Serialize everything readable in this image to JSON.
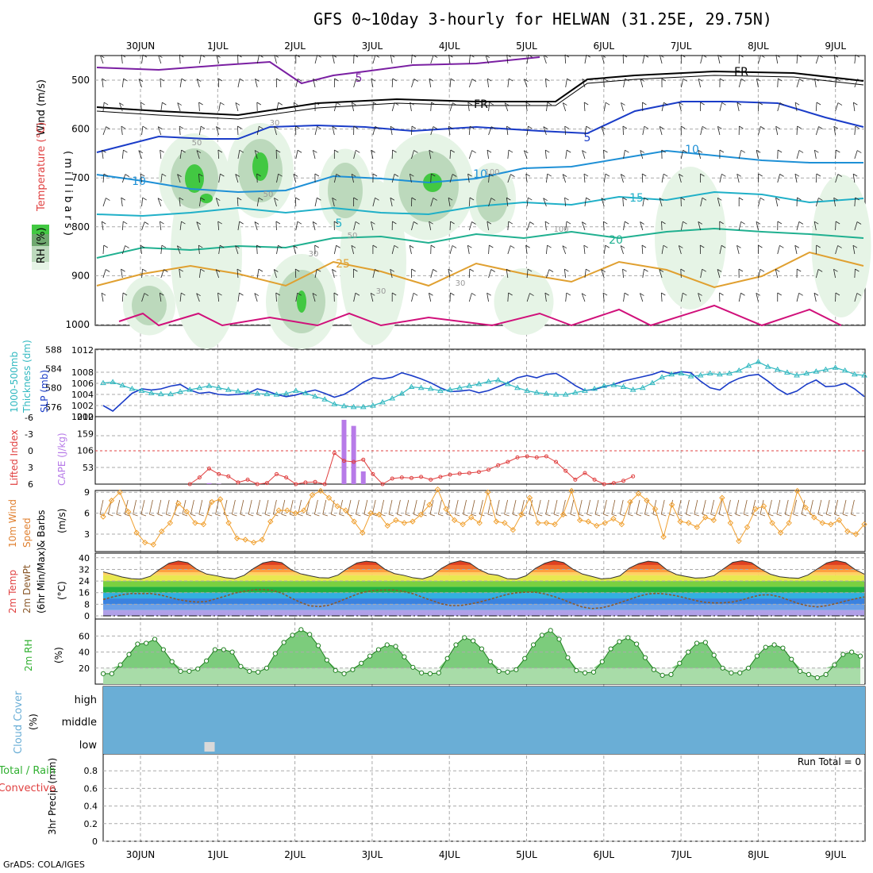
{
  "title": "GFS 0~10day 3-hourly for HELWAN (31.25E, 29.75N)",
  "credit": "GrADS: COLA/IGES",
  "colors": {
    "grid": "#aaaaaa",
    "rh_light": "#e6f4e6",
    "rh_mid": "#bcd9bc",
    "rh_dark": "#6fa86f",
    "rh_bright": "#42c842",
    "slp": "#1a3cc8",
    "thickness": "#30b8c0",
    "cape": "#b77be8",
    "lifted": "#e04040",
    "wind10": "#f0a030",
    "barb": "#8b5a2b",
    "temp_line": "#8b5a2b",
    "rh2m": "#30b030",
    "cloud": "#6aaed6",
    "cloud_low": "#d9d9d9"
  },
  "time_axis": {
    "labels": [
      "30JUN",
      "1JUL",
      "2JUL",
      "3JUL",
      "4JUL",
      "5JUL",
      "6JUL",
      "7JUL",
      "8JUL",
      "9JUL"
    ]
  },
  "panels": {
    "upper_air": {
      "ylabels": [
        "Wind (m/s)",
        "Temperature (°C)",
        "RH (%)",
        "( m i l l i b a r s )"
      ],
      "ticks": [
        "500",
        "600",
        "700",
        "800",
        "900",
        "1000"
      ],
      "contour_labels": [
        "5",
        "5",
        "10",
        "10",
        "10",
        "5",
        "15",
        "20",
        "25",
        "FR",
        "FR",
        "30",
        "30",
        "30",
        "50",
        "50",
        "50",
        "30",
        "100",
        "100"
      ]
    },
    "thickness_slp": {
      "ylabel_left": "1000-500mb",
      "ylabel_left2": "Thickness (dm)",
      "ylabel_right": "SLP (mb)",
      "ticks_left": [
        "588",
        "584",
        "580",
        "576"
      ],
      "ticks_right": [
        "1012",
        "1008",
        "1006",
        "1004",
        "1002",
        "1000"
      ]
    },
    "cape": {
      "ylabel_left": "Lifted Index",
      "ylabel_right": "CAPE (J/kg)",
      "ticks_left": [
        "-6",
        "-3",
        "0",
        "3",
        "6"
      ],
      "ticks_right": [
        "212",
        "159",
        "106",
        "53"
      ]
    },
    "wind10m": {
      "ylabels": [
        "10m Wind",
        "Speed",
        "& Barbs"
      ],
      "unit": "(m/s)",
      "ticks": [
        "9",
        "6",
        "3"
      ]
    },
    "temp2m": {
      "ylabels": [
        "2m Temp",
        "2m DewPt",
        "(6hr Min/Max)"
      ],
      "unit": "(°C)",
      "ticks": [
        "40",
        "32",
        "24",
        "16",
        "8",
        "0"
      ]
    },
    "rh2m": {
      "ylabel": "2m RH",
      "unit": "(%)",
      "ticks": [
        "60",
        "40",
        "20"
      ]
    },
    "cloud": {
      "ylabel": "Cloud Cover",
      "unit": "(%)",
      "levels": [
        "high",
        "middle",
        "low"
      ]
    },
    "precip": {
      "ylabel": "3hr Precip (mm)",
      "legend_total": "Total / Rain",
      "legend_conv": "Convective",
      "run_total": "Run Total = 0",
      "ticks": [
        "0.8",
        "0.6",
        "0.4",
        "0.2",
        "0"
      ]
    }
  },
  "chart_data": [
    {
      "type": "line",
      "title": "1000-500mb Thickness (dm) / SLP (mb)",
      "x": "3-hourly steps from 30JUN 00Z (0..79)",
      "series": [
        {
          "name": "SLP (mb)",
          "axis": "right",
          "ylim": [
            1000,
            1012
          ],
          "values": [
            1002.0,
            1001.0,
            1002.6,
            1004.2,
            1005.0,
            1004.8,
            1005.0,
            1005.5,
            1005.8,
            1004.8,
            1004.2,
            1004.4,
            1004.0,
            1003.9,
            1004.0,
            1004.2,
            1005.0,
            1004.6,
            1004.0,
            1003.6,
            1003.9,
            1004.4,
            1004.8,
            1004.2,
            1003.5,
            1004.0,
            1005.0,
            1006.2,
            1007.0,
            1006.8,
            1007.1,
            1007.9,
            1007.4,
            1006.8,
            1006.1,
            1005.2,
            1004.5,
            1004.6,
            1004.8,
            1004.3,
            1004.7,
            1005.4,
            1006.1,
            1007.0,
            1007.4,
            1007.0,
            1007.6,
            1007.8,
            1006.8,
            1005.6,
            1004.7,
            1004.9,
            1005.4,
            1005.8,
            1006.4,
            1006.8,
            1007.2,
            1007.6,
            1008.2,
            1007.7,
            1008.1,
            1007.9,
            1006.4,
            1005.2,
            1004.8,
            1006.1,
            1006.9,
            1007.4,
            1007.6,
            1006.4,
            1005.0,
            1004.0,
            1004.6,
            1005.8,
            1006.6,
            1005.4,
            1005.5,
            1006.0,
            1005.0,
            1003.6
          ]
        },
        {
          "name": "1000-500mb Thickness (dm)",
          "axis": "left",
          "ylim": [
            574,
            588
          ],
          "values": [
            581.0,
            581.2,
            580.5,
            579.8,
            579.4,
            578.9,
            578.7,
            578.7,
            579.2,
            579.6,
            580.0,
            580.4,
            580.0,
            579.6,
            579.3,
            579.0,
            578.8,
            578.7,
            578.6,
            578.8,
            579.4,
            578.9,
            578.2,
            577.6,
            576.6,
            576.2,
            576.0,
            576.0,
            576.3,
            577.0,
            577.8,
            578.8,
            580.2,
            580.0,
            579.8,
            579.4,
            579.6,
            580.0,
            580.4,
            580.8,
            581.3,
            581.6,
            580.8,
            580.0,
            579.4,
            579.0,
            578.8,
            578.6,
            578.6,
            579.0,
            579.4,
            579.8,
            580.4,
            580.6,
            580.2,
            579.6,
            580.0,
            581.0,
            582.2,
            582.8,
            583.0,
            582.4,
            582.6,
            583.0,
            582.8,
            583.0,
            583.6,
            584.6,
            585.4,
            584.4,
            583.8,
            583.2,
            582.6,
            583.0,
            583.4,
            583.8,
            584.2,
            583.6,
            582.8,
            582.6
          ]
        }
      ]
    },
    {
      "type": "bar",
      "title": "CAPE (J/kg) / Lifted Index",
      "cape_ylim": [
        0,
        212
      ],
      "cape_bars": [
        {
          "step": 11,
          "value": 3
        },
        {
          "step": 12,
          "value": 1
        },
        {
          "step": 25,
          "value": 202
        },
        {
          "step": 26,
          "value": 183
        },
        {
          "step": 27,
          "value": 40
        }
      ],
      "lifted_index": {
        "ylim": [
          6,
          -6
        ],
        "start_step": 9,
        "values": [
          6.5,
          4.8,
          3.2,
          4.2,
          4.6,
          5.7,
          5.2,
          6.0,
          5.8,
          4.2,
          4.8,
          6.2,
          5.7,
          5.6,
          6.1,
          0.4,
          1.8,
          2.0,
          1.6,
          4.2,
          6.0,
          5.0,
          4.8,
          4.9,
          4.7,
          5.2,
          4.7,
          4.3,
          4.1,
          4.0,
          3.8,
          3.4,
          2.6,
          2.0,
          1.2,
          1.0,
          1.2,
          1.0,
          2.0,
          3.6,
          5.2,
          4.0,
          5.2,
          6.0,
          5.8,
          5.4,
          4.6
        ]
      }
    },
    {
      "type": "line",
      "title": "10m Wind Speed (m/s)",
      "ylim": [
        1,
        10
      ],
      "values": [
        5.5,
        7.8,
        9.0,
        6.2,
        3.2,
        1.8,
        1.5,
        3.4,
        4.6,
        7.4,
        6.2,
        4.6,
        4.4,
        7.6,
        8.0,
        4.6,
        2.4,
        2.2,
        1.8,
        2.2,
        4.8,
        6.4,
        6.4,
        6.0,
        6.4,
        8.6,
        9.2,
        8.2,
        7.0,
        6.4,
        4.8,
        3.2,
        6.0,
        5.8,
        4.2,
        5.0,
        4.6,
        4.8,
        5.8,
        7.2,
        9.4,
        6.6,
        5.0,
        4.4,
        5.4,
        4.6,
        9.0,
        4.8,
        4.6,
        3.6,
        5.8,
        8.2,
        4.6,
        4.6,
        4.4,
        5.8,
        9.2,
        5.0,
        4.8,
        4.2,
        4.6,
        5.2,
        4.4,
        7.6,
        8.8,
        7.8,
        6.6,
        2.6,
        7.2,
        4.8,
        4.6,
        4.0,
        5.4,
        5.0,
        8.2,
        4.6,
        2.0,
        4.0,
        6.6,
        7.0,
        4.6,
        3.2,
        4.6,
        9.2,
        6.8,
        5.4,
        4.6,
        4.4,
        5.0,
        3.4,
        3.0,
        4.4
      ]
    },
    {
      "type": "area",
      "title": "2m Temp / 2m DewPt (°C)",
      "ylim": [
        0,
        40
      ],
      "temp_2m": [
        30.3,
        28.6,
        26.8,
        25.6,
        25.3,
        27.2,
        32.0,
        36.2,
        37.8,
        36.6,
        31.9,
        28.8,
        27.7,
        26.3,
        25.6,
        27.9,
        32.6,
        36.4,
        37.7,
        36.6,
        31.8,
        29.0,
        27.6,
        26.3,
        26.1,
        28.1,
        32.7,
        36.4,
        37.6,
        36.9,
        32.0,
        29.1,
        27.9,
        26.2,
        25.5,
        27.6,
        32.7,
        36.3,
        37.9,
        36.4,
        31.9,
        28.9,
        28.0,
        25.6,
        25.4,
        27.6,
        32.7,
        36.2,
        38.1,
        36.7,
        32.1,
        28.8,
        27.2,
        25.5,
        25.9,
        27.6,
        32.9,
        36.0,
        37.6,
        36.9,
        31.6,
        28.5,
        27.2,
        26.0,
        26.3,
        27.7,
        32.3,
        36.8,
        38.0,
        36.6,
        32.2,
        28.7,
        26.9,
        26.2,
        25.9,
        28.1,
        32.3,
        36.4,
        38.1,
        36.7,
        32.0,
        28.7
      ],
      "dewpoint_2m": [
        11.3,
        13.0,
        14.5,
        15.4,
        15.3,
        15.4,
        14.5,
        12.9,
        11.2,
        10.1,
        9.5,
        9.9,
        11.7,
        13.6,
        15.7,
        16.9,
        17.9,
        18.1,
        17.6,
        15.7,
        12.3,
        9.3,
        6.9,
        6.4,
        7.3,
        9.6,
        12.3,
        14.9,
        16.7,
        17.6,
        17.8,
        17.8,
        16.8,
        15.2,
        12.8,
        10.5,
        8.3,
        7.1,
        7.1,
        8.1,
        9.4,
        11.1,
        13.0,
        14.8,
        15.9,
        16.4,
        16.3,
        15.1,
        13.3,
        11.0,
        8.4,
        6.1,
        5.0,
        5.5,
        7.0,
        9.1,
        11.3,
        13.5,
        15.1,
        15.5,
        14.9,
        13.8,
        12.3,
        10.6,
        9.4,
        8.9,
        9.0,
        9.6,
        11.0,
        12.9,
        14.4,
        14.5,
        13.1,
        10.8,
        8.5,
        6.9,
        6.2,
        7.0,
        8.5,
        10.2,
        11.7,
        13.0
      ]
    },
    {
      "type": "area",
      "title": "2m RH (%)",
      "ylim": [
        0,
        70
      ],
      "values": [
        13,
        13,
        24,
        37,
        50,
        51,
        56,
        43,
        28,
        16,
        16,
        19,
        29,
        43,
        43,
        40,
        22,
        16,
        15,
        20,
        38,
        52,
        61,
        68,
        62,
        48,
        30,
        17,
        13,
        18,
        26,
        35,
        43,
        49,
        47,
        34,
        21,
        14,
        13,
        14,
        32,
        49,
        58,
        54,
        44,
        28,
        16,
        15,
        18,
        32,
        49,
        61,
        67,
        56,
        33,
        17,
        14,
        15,
        28,
        44,
        53,
        58,
        50,
        33,
        18,
        11,
        12,
        26,
        40,
        51,
        52,
        36,
        20,
        14,
        14,
        20,
        35,
        46,
        49,
        45,
        31,
        16,
        12,
        8,
        12,
        24,
        37,
        40,
        35
      ]
    },
    {
      "type": "table",
      "title": "Cloud Cover (%)",
      "rows": [
        "high",
        "middle",
        "low"
      ],
      "low_cloud_steps": [
        11
      ]
    },
    {
      "type": "bar",
      "title": "3hr Precip (mm)",
      "ylim": [
        0,
        1
      ],
      "values": []
    }
  ]
}
